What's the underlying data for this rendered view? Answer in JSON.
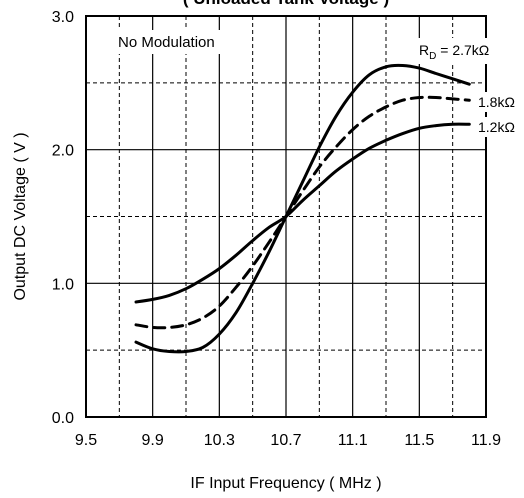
{
  "chart_data": {
    "type": "line",
    "title": "( Unloaded Tank Voltage )",
    "annotation": "No Modulation",
    "xlabel": "IF Input Frequency ( MHz )",
    "ylabel": "Output DC Voltage ( V )",
    "xlim": [
      9.5,
      11.9
    ],
    "ylim": [
      0.0,
      3.0
    ],
    "x_ticks": [
      "9.5",
      "9.9",
      "10.3",
      "10.7",
      "11.1",
      "11.5",
      "11.9"
    ],
    "y_ticks": [
      "0.0",
      "1.0",
      "2.0",
      "3.0"
    ],
    "grid": true,
    "legend": "inline labels at right end of curves",
    "series": [
      {
        "name": "RD = 2.7kΩ",
        "label_main": "R",
        "label_sub": "D",
        "label_rest": " = 2.7kΩ",
        "style": "solid",
        "x": [
          9.8,
          9.9,
          10.0,
          10.1,
          10.2,
          10.3,
          10.4,
          10.5,
          10.6,
          10.7,
          10.8,
          10.9,
          11.0,
          11.1,
          11.2,
          11.3,
          11.4,
          11.5,
          11.6,
          11.7,
          11.8
        ],
        "y": [
          0.56,
          0.51,
          0.49,
          0.49,
          0.52,
          0.62,
          0.78,
          1.0,
          1.24,
          1.5,
          1.76,
          2.02,
          2.25,
          2.43,
          2.56,
          2.62,
          2.63,
          2.61,
          2.57,
          2.53,
          2.49
        ]
      },
      {
        "name": "1.8kΩ",
        "label_main": "1.8kΩ",
        "label_sub": "",
        "label_rest": "",
        "style": "dashed",
        "x": [
          9.8,
          9.9,
          10.0,
          10.1,
          10.2,
          10.3,
          10.4,
          10.5,
          10.6,
          10.7,
          10.8,
          10.9,
          11.0,
          11.1,
          11.2,
          11.3,
          11.4,
          11.5,
          11.6,
          11.7,
          11.8
        ],
        "y": [
          0.69,
          0.67,
          0.67,
          0.69,
          0.74,
          0.83,
          0.97,
          1.13,
          1.31,
          1.5,
          1.69,
          1.87,
          2.02,
          2.15,
          2.25,
          2.32,
          2.37,
          2.39,
          2.39,
          2.38,
          2.37
        ]
      },
      {
        "name": "1.2kΩ",
        "label_main": "1.2kΩ",
        "label_sub": "",
        "label_rest": "",
        "style": "solid",
        "x": [
          9.8,
          9.9,
          10.0,
          10.1,
          10.2,
          10.3,
          10.4,
          10.5,
          10.6,
          10.7,
          10.8,
          10.9,
          11.0,
          11.1,
          11.2,
          11.3,
          11.4,
          11.5,
          11.6,
          11.7,
          11.8
        ],
        "y": [
          0.86,
          0.88,
          0.91,
          0.96,
          1.03,
          1.11,
          1.21,
          1.32,
          1.42,
          1.5,
          1.62,
          1.73,
          1.84,
          1.93,
          2.01,
          2.07,
          2.12,
          2.16,
          2.18,
          2.19,
          2.19
        ]
      }
    ]
  }
}
